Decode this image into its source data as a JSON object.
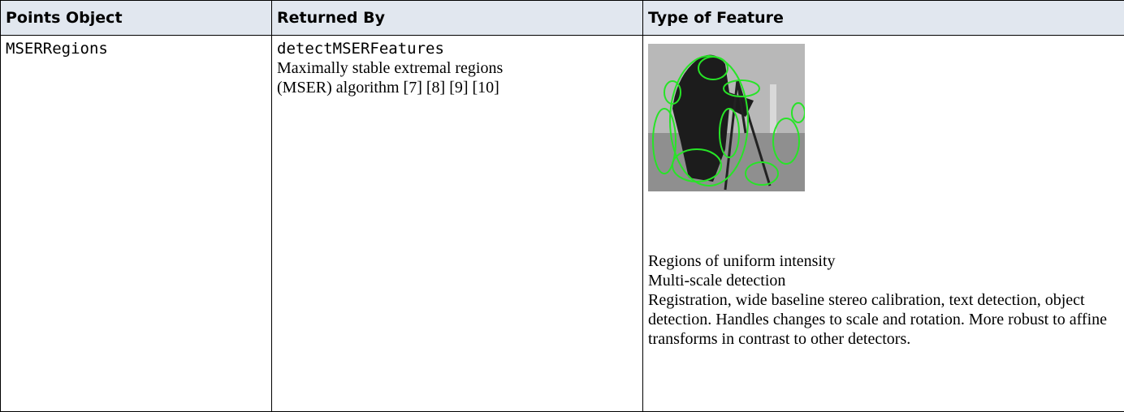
{
  "table": {
    "header": [
      "Points Object",
      "Returned By",
      "Type of Feature"
    ],
    "rows": [
      {
        "object": "MSERRegions",
        "function": "detectMSERFeatures",
        "description_lines": [
          "Maximally stable extremal regions",
          "(MSER) algorithm [7] [8] [9] [10]"
        ],
        "features": [
          "Regions of uniform intensity",
          "Multi-scale detection",
          "Registration, wide baseline stereo calibration, text detection, object detection. Handles changes to scale and rotation. More robust to affine transforms in contrast to other detectors."
        ]
      }
    ]
  }
}
